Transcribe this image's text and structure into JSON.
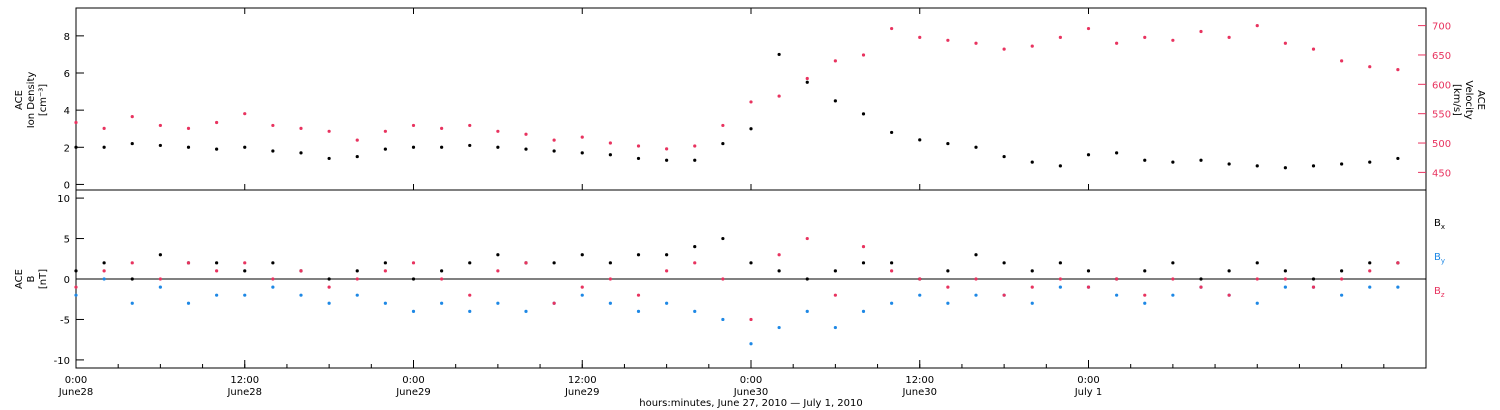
{
  "chart_data": [
    {
      "type": "scatter",
      "panel": "top",
      "title": "",
      "xlabel": "hours:minutes, June 27, 2010 — July  1, 2010",
      "ylabel_left": [
        "ACE",
        "Ion Density",
        "[cm⁻³]"
      ],
      "ylabel_right": [
        "ACE",
        "Velocity",
        "[km/s]"
      ],
      "x_unit": "hours since 2010-06-28 00:00",
      "xlim": [
        0,
        96
      ],
      "ylim_left": [
        -0.3,
        9.5
      ],
      "ylim_right": [
        420,
        730
      ],
      "left_ticks": [
        0,
        2,
        4,
        6,
        8
      ],
      "right_ticks": [
        450,
        500,
        550,
        600,
        650,
        700
      ],
      "series": [
        {
          "axis": "left",
          "color": "#000000",
          "x": [
            0,
            2,
            4,
            6,
            8,
            10,
            12,
            14,
            16,
            18,
            20,
            22,
            24,
            26,
            28,
            30,
            32,
            34,
            36,
            38,
            40,
            42,
            44,
            46,
            48,
            50,
            52,
            54,
            56,
            58,
            60,
            62,
            64,
            66,
            68,
            70,
            72,
            74,
            76,
            78,
            80,
            82,
            84,
            86,
            88,
            90,
            92,
            94
          ],
          "values": [
            2.0,
            2.0,
            2.2,
            2.1,
            2.0,
            1.9,
            2.0,
            1.8,
            1.7,
            1.4,
            1.5,
            1.9,
            2.0,
            2.0,
            2.1,
            2.0,
            1.9,
            1.8,
            1.7,
            1.6,
            1.4,
            1.3,
            1.3,
            2.2,
            3.0,
            7.0,
            5.5,
            4.5,
            3.8,
            2.8,
            2.4,
            2.2,
            2.0,
            1.5,
            1.2,
            1.0,
            1.6,
            1.7,
            1.3,
            1.2,
            1.3,
            1.1,
            1.0,
            0.9,
            1.0,
            1.1,
            1.2,
            1.4
          ]
        },
        {
          "axis": "right",
          "color": "#e8335f",
          "x": [
            0,
            2,
            4,
            6,
            8,
            10,
            12,
            14,
            16,
            18,
            20,
            22,
            24,
            26,
            28,
            30,
            32,
            34,
            36,
            38,
            40,
            42,
            44,
            46,
            48,
            50,
            52,
            54,
            56,
            58,
            60,
            62,
            64,
            66,
            68,
            70,
            72,
            74,
            76,
            78,
            80,
            82,
            84,
            86,
            88,
            90,
            92,
            94
          ],
          "values": [
            535,
            525,
            545,
            530,
            525,
            535,
            550,
            530,
            525,
            520,
            505,
            520,
            530,
            525,
            530,
            520,
            515,
            505,
            510,
            500,
            495,
            490,
            495,
            530,
            570,
            580,
            610,
            640,
            650,
            695,
            680,
            675,
            670,
            660,
            665,
            680,
            695,
            670,
            680,
            675,
            690,
            680,
            700,
            670,
            660,
            640,
            630,
            625
          ]
        }
      ]
    },
    {
      "type": "scatter",
      "panel": "bottom",
      "title": "",
      "xlabel": "hours:minutes, June 27, 2010 — July  1, 2010",
      "ylabel": [
        "ACE",
        "B",
        "[nT]"
      ],
      "x_unit": "hours since 2010-06-28 00:00",
      "xlim": [
        0,
        96
      ],
      "ylim": [
        -11,
        11
      ],
      "yticks": [
        -10,
        -5,
        0,
        5,
        10
      ],
      "zero_line": true,
      "legend": {
        "placement": "right",
        "entries": [
          {
            "text": "B",
            "sub": "x",
            "color": "#000000"
          },
          {
            "text": "B",
            "sub": "y",
            "color": "#1e88e5"
          },
          {
            "text": "B",
            "sub": "z",
            "color": "#e8335f"
          }
        ]
      },
      "series": [
        {
          "name": "Bx",
          "color": "#000000",
          "x": [
            0,
            2,
            4,
            6,
            8,
            10,
            12,
            14,
            16,
            18,
            20,
            22,
            24,
            26,
            28,
            30,
            32,
            34,
            36,
            38,
            40,
            42,
            44,
            46,
            48,
            50,
            52,
            54,
            56,
            58,
            60,
            62,
            64,
            66,
            68,
            70,
            72,
            74,
            76,
            78,
            80,
            82,
            84,
            86,
            88,
            90,
            92,
            94
          ],
          "values": [
            1,
            2,
            0,
            3,
            2,
            2,
            1,
            2,
            1,
            0,
            1,
            2,
            0,
            1,
            2,
            3,
            2,
            2,
            3,
            2,
            3,
            3,
            4,
            5,
            2,
            1,
            0,
            1,
            2,
            2,
            0,
            1,
            3,
            2,
            1,
            2,
            1,
            0,
            1,
            2,
            0,
            1,
            2,
            1,
            0,
            1,
            2,
            2
          ]
        },
        {
          "name": "By",
          "color": "#1e88e5",
          "x": [
            0,
            2,
            4,
            6,
            8,
            10,
            12,
            14,
            16,
            18,
            20,
            22,
            24,
            26,
            28,
            30,
            32,
            34,
            36,
            38,
            40,
            42,
            44,
            46,
            48,
            50,
            52,
            54,
            56,
            58,
            60,
            62,
            64,
            66,
            68,
            70,
            72,
            74,
            76,
            78,
            80,
            82,
            84,
            86,
            88,
            90,
            92,
            94
          ],
          "values": [
            -2,
            0,
            -3,
            -1,
            -3,
            -2,
            -2,
            -1,
            -2,
            -3,
            -2,
            -3,
            -4,
            -3,
            -4,
            -3,
            -4,
            -3,
            -2,
            -3,
            -4,
            -3,
            -4,
            -5,
            -8,
            -6,
            -4,
            -6,
            -4,
            -3,
            -2,
            -3,
            -2,
            -2,
            -3,
            -1,
            -1,
            -2,
            -3,
            -2,
            -1,
            -2,
            -3,
            -1,
            -1,
            -2,
            -1,
            -1
          ]
        },
        {
          "name": "Bz",
          "color": "#e8335f",
          "x": [
            0,
            2,
            4,
            6,
            8,
            10,
            12,
            14,
            16,
            18,
            20,
            22,
            24,
            26,
            28,
            30,
            32,
            34,
            36,
            38,
            40,
            42,
            44,
            46,
            48,
            50,
            52,
            54,
            56,
            58,
            60,
            62,
            64,
            66,
            68,
            70,
            72,
            74,
            76,
            78,
            80,
            82,
            84,
            86,
            88,
            90,
            92,
            94
          ],
          "values": [
            -1,
            1,
            2,
            0,
            2,
            1,
            2,
            0,
            1,
            -1,
            0,
            1,
            2,
            0,
            -2,
            1,
            2,
            -3,
            -1,
            0,
            -2,
            1,
            2,
            0,
            -5,
            3,
            5,
            -2,
            4,
            1,
            0,
            -1,
            0,
            -2,
            -1,
            0,
            -1,
            0,
            -2,
            0,
            -1,
            -2,
            0,
            0,
            -1,
            0,
            1,
            2
          ]
        }
      ]
    }
  ],
  "x_axis": {
    "tick_labels": [
      {
        "time": "0:00",
        "date": "June28",
        "hours": 0
      },
      {
        "time": "12:00",
        "date": "June28",
        "hours": 12
      },
      {
        "time": "0:00",
        "date": "June29",
        "hours": 24
      },
      {
        "time": "12:00",
        "date": "June29",
        "hours": 36
      },
      {
        "time": "0:00",
        "date": "June30",
        "hours": 48
      },
      {
        "time": "12:00",
        "date": "June30",
        "hours": 60
      },
      {
        "time": "0:00",
        "date": "July 1",
        "hours": 72
      }
    ]
  }
}
